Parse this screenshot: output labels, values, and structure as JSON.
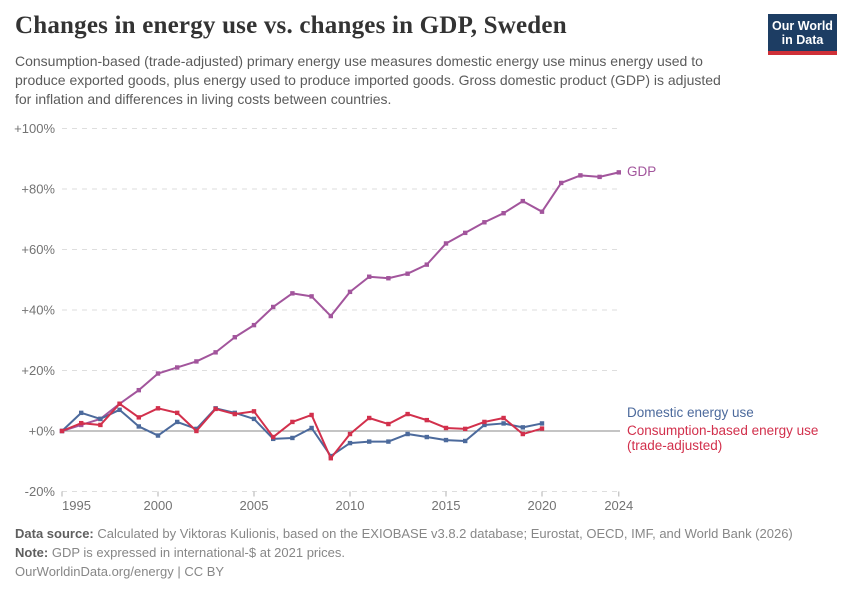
{
  "header": {
    "title": "Changes in energy use vs. changes in GDP, Sweden",
    "subtitle": "Consumption-based (trade-adjusted) primary energy use measures domestic energy use minus energy used to produce exported goods, plus energy used to produce imported goods. Gross domestic product (GDP) is adjusted for inflation and differences in living costs between countries.",
    "logo": {
      "line1": "Our World",
      "line2": "in Data",
      "bg_color": "#1d3d63",
      "accent_color": "#cf3038"
    }
  },
  "chart_data": {
    "type": "line",
    "title": "Changes in energy use vs. changes in GDP, Sweden",
    "xlabel": "",
    "ylabel": "",
    "unit": "%",
    "xlim": [
      1995,
      2024
    ],
    "ylim": [
      -20,
      100
    ],
    "grid": "horizontal-dashed",
    "legend_position": "right-end-labels",
    "x_ticks": [
      1995,
      2000,
      2005,
      2010,
      2015,
      2020,
      2024
    ],
    "y_ticks": [
      {
        "value": -20,
        "label": "-20%"
      },
      {
        "value": 0,
        "label": "+0%"
      },
      {
        "value": 20,
        "label": "+20%"
      },
      {
        "value": 40,
        "label": "+40%"
      },
      {
        "value": 60,
        "label": "+60%"
      },
      {
        "value": 80,
        "label": "+80%"
      },
      {
        "value": 100,
        "label": "+100%"
      }
    ],
    "series": [
      {
        "name": "GDP",
        "label_lines": [
          "GDP"
        ],
        "color": "#a2559c",
        "start_year": 1995,
        "end_year": 2024,
        "values": [
          0,
          2,
          4,
          9,
          13.5,
          19,
          21,
          23,
          26,
          31,
          35,
          41,
          45.5,
          44.5,
          38,
          46,
          51,
          50.5,
          52,
          55,
          62,
          65.5,
          69,
          72,
          76,
          72.5,
          82,
          84.5,
          84,
          85.5
        ]
      },
      {
        "name": "Domestic energy use",
        "label_lines": [
          "Domestic energy use"
        ],
        "color": "#4c6a9c",
        "start_year": 1995,
        "end_year": 2020,
        "values": [
          0,
          6,
          4,
          7,
          1.5,
          -1.5,
          3,
          0.7,
          7.5,
          6,
          4,
          -2.6,
          -2.3,
          1,
          -8.3,
          -4,
          -3.5,
          -3.5,
          -1,
          -2,
          -3,
          -3.3,
          2,
          2.5,
          1.2,
          2.5
        ]
      },
      {
        "name": "Consumption-based energy use (trade-adjusted)",
        "label_lines": [
          "Consumption-based energy use",
          "(trade-adjusted)"
        ],
        "color": "#d2304c",
        "start_year": 1995,
        "end_year": 2020,
        "values": [
          0,
          2.6,
          2,
          9,
          4.5,
          7.5,
          6,
          0,
          7.3,
          5.6,
          6.5,
          -2,
          3,
          5.3,
          -9,
          -1,
          4.3,
          2.3,
          5.6,
          3.6,
          1,
          0.7,
          3,
          4.3,
          -1,
          0.8
        ]
      }
    ]
  },
  "footer": {
    "source_label": "Data source:",
    "source_text": "Calculated by Viktoras Kulionis, based on the EXIOBASE v3.8.2 database; Eurostat, OECD, IMF, and World Bank (2026)",
    "note_label": "Note:",
    "note_text": "GDP is expressed in international-$ at 2021 prices.",
    "url_text": "OurWorldinData.org/energy",
    "license_separator": " | ",
    "license_text": "CC BY"
  }
}
